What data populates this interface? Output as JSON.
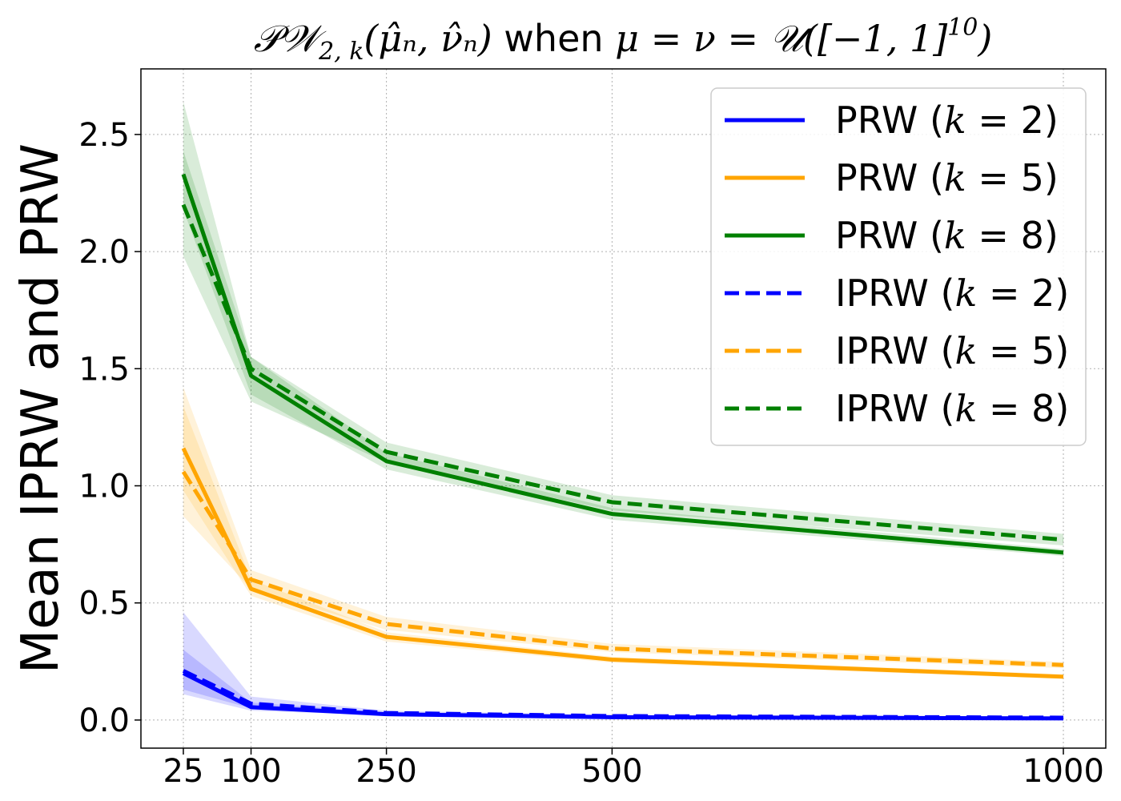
{
  "chart_data": {
    "type": "line",
    "title": {
      "pre": "𝒫𝒲",
      "sub": "2, k",
      "args": "(μ̂ₙ, ν̂ₙ)",
      "when": " when ",
      "cond": "μ = ν = 𝒰([−1, 1]",
      "sup": "10",
      "close": ")"
    },
    "xlabel": "",
    "ylabel": "Mean IPRW and PRW",
    "x": [
      25,
      100,
      250,
      500,
      1000
    ],
    "x_ticks": [
      "25",
      "100",
      "250",
      "500",
      "1000"
    ],
    "y_ticks": [
      "0.0",
      "0.5",
      "1.0",
      "1.5",
      "2.0",
      "2.5"
    ],
    "xlim": [
      -22,
      1047
    ],
    "ylim": [
      -0.12,
      2.78
    ],
    "grid": true,
    "legend_position": "top-right",
    "colors": {
      "blue": "#0000ff",
      "orange": "#ffa500",
      "green": "#008000"
    },
    "series": [
      {
        "name": "PRW",
        "k": "2",
        "style": "solid",
        "color": "#0000ff",
        "values": [
          0.2,
          0.055,
          0.025,
          0.012,
          0.007
        ],
        "lower": [
          0.11,
          0.04,
          0.02,
          0.009,
          0.005
        ],
        "upper": [
          0.3,
          0.075,
          0.032,
          0.016,
          0.01
        ]
      },
      {
        "name": "PRW",
        "k": "5",
        "style": "solid",
        "color": "#ffa500",
        "values": [
          1.16,
          0.56,
          0.355,
          0.258,
          0.185
        ],
        "lower": [
          0.98,
          0.53,
          0.335,
          0.245,
          0.175
        ],
        "upper": [
          1.34,
          0.6,
          0.375,
          0.27,
          0.195
        ]
      },
      {
        "name": "PRW",
        "k": "8",
        "style": "solid",
        "color": "#008000",
        "values": [
          2.33,
          1.47,
          1.105,
          0.88,
          0.715
        ],
        "lower": [
          2.18,
          1.39,
          1.07,
          0.855,
          0.7
        ],
        "upper": [
          2.43,
          1.55,
          1.14,
          0.905,
          0.73
        ]
      },
      {
        "name": "IPRW",
        "k": "2",
        "style": "dashed",
        "color": "#0000ff",
        "values": [
          0.21,
          0.07,
          0.03,
          0.017,
          0.01
        ],
        "lower": [
          0.13,
          0.05,
          0.025,
          0.013,
          0.008
        ],
        "upper": [
          0.46,
          0.1,
          0.04,
          0.022,
          0.014
        ]
      },
      {
        "name": "IPRW",
        "k": "5",
        "style": "dashed",
        "color": "#ffa500",
        "values": [
          1.06,
          0.6,
          0.41,
          0.305,
          0.235
        ],
        "lower": [
          0.87,
          0.56,
          0.385,
          0.29,
          0.222
        ],
        "upper": [
          1.42,
          0.64,
          0.44,
          0.325,
          0.248
        ]
      },
      {
        "name": "IPRW",
        "k": "8",
        "style": "dashed",
        "color": "#008000",
        "values": [
          2.2,
          1.5,
          1.145,
          0.93,
          0.77
        ],
        "lower": [
          1.98,
          1.36,
          1.1,
          0.895,
          0.745
        ],
        "upper": [
          2.64,
          1.55,
          1.185,
          0.96,
          0.795
        ]
      }
    ]
  }
}
